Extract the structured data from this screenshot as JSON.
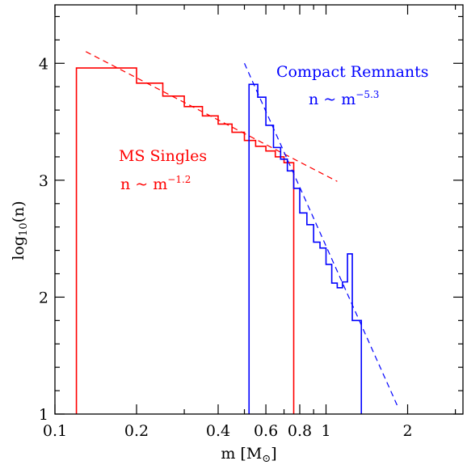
{
  "chart_data": {
    "type": "line",
    "xscale": "log",
    "xlim": [
      0.1,
      3.2
    ],
    "ylim": [
      1,
      4.5
    ],
    "xlabel_main": "m  [M",
    "xlabel_sub": "⊙",
    "xlabel_close": "]",
    "ylabel_main": "log",
    "ylabel_sub": "10",
    "ylabel_rest": "(n)",
    "xticks": [
      {
        "value": 0.1,
        "label": "0.1"
      },
      {
        "value": 0.2,
        "label": "0.2"
      },
      {
        "value": 0.4,
        "label": "0.4"
      },
      {
        "value": 0.6,
        "label": "0.6"
      },
      {
        "value": 0.8,
        "label": "0.8"
      },
      {
        "value": 1,
        "label": "1"
      },
      {
        "value": 2,
        "label": "2"
      }
    ],
    "xminor": [
      0.3,
      0.5,
      0.7,
      0.9,
      3
    ],
    "yticks": [
      {
        "value": 1,
        "label": "1"
      },
      {
        "value": 2,
        "label": "2"
      },
      {
        "value": 3,
        "label": "3"
      },
      {
        "value": 4,
        "label": "4"
      }
    ],
    "grid": false,
    "series": [
      {
        "name": "MS Singles",
        "color": "#ff0000",
        "style": "step",
        "baseline": 1,
        "edges": [
          0.12,
          0.15,
          0.2,
          0.25,
          0.3,
          0.35,
          0.4,
          0.45,
          0.5,
          0.55,
          0.6,
          0.65,
          0.7,
          0.76
        ],
        "values": [
          3.96,
          3.96,
          3.83,
          3.72,
          3.63,
          3.55,
          3.48,
          3.41,
          3.34,
          3.29,
          3.25,
          3.2,
          3.15
        ]
      },
      {
        "name": "Compact Remnants",
        "color": "#0000ff",
        "style": "step",
        "baseline": 1,
        "edges": [
          0.52,
          0.56,
          0.6,
          0.64,
          0.68,
          0.72,
          0.76,
          0.8,
          0.85,
          0.9,
          0.95,
          1.0,
          1.05,
          1.1,
          1.15,
          1.2,
          1.25,
          1.3,
          1.35
        ],
        "values": [
          3.82,
          3.71,
          3.47,
          3.28,
          3.18,
          3.08,
          2.93,
          2.72,
          2.62,
          2.47,
          2.42,
          2.28,
          2.12,
          2.08,
          2.13,
          2.37,
          1.8,
          1.8
        ]
      }
    ],
    "fits": [
      {
        "color": "#ff0000",
        "x": [
          0.13,
          1.1
        ],
        "y": [
          4.1,
          2.99
        ]
      },
      {
        "color": "#0000ff",
        "x": [
          0.5,
          1.85
        ],
        "y": [
          4.0,
          1.05
        ]
      }
    ],
    "annotations": [
      {
        "lines": [
          {
            "text": "Compact Remnants"
          },
          {
            "text": "n ~ m",
            "sup": "−5.3"
          }
        ],
        "color": "#0000ff"
      },
      {
        "lines": [
          {
            "text": "MS Singles"
          },
          {
            "text": "n ~ m",
            "sup": "−1.2"
          }
        ],
        "color": "#ff0000"
      }
    ]
  }
}
